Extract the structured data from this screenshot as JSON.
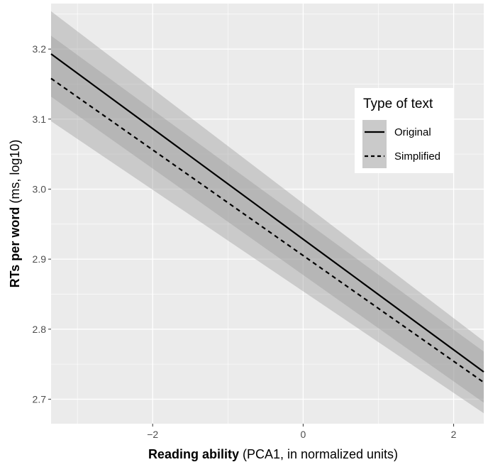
{
  "chart_data": {
    "type": "line",
    "xlabel_bold": "Reading ability",
    "xlabel_rest": " (PCA1, in normalized units)",
    "ylabel_bold": "RTs per word",
    "ylabel_rest": " (ms, log10)",
    "xlim": [
      -3.35,
      2.4
    ],
    "ylim": [
      2.665,
      3.265
    ],
    "x_ticks": [
      -2,
      0,
      2
    ],
    "x_tick_labels": [
      "−2",
      "0",
      "2"
    ],
    "y_ticks": [
      2.7,
      2.8,
      2.9,
      3.0,
      3.1,
      3.2
    ],
    "y_tick_labels": [
      "2.7",
      "2.8",
      "2.9",
      "3.0",
      "3.1",
      "3.2"
    ],
    "grid": true,
    "legend": {
      "title": "Type of text",
      "placement": "right-inside"
    },
    "series": [
      {
        "name": "Original",
        "line_style": "solid",
        "x": [
          -3.35,
          2.4
        ],
        "y": [
          3.193,
          2.739
        ],
        "ci_lower": [
          3.132,
          2.695
        ],
        "ci_upper": [
          3.254,
          2.783
        ]
      },
      {
        "name": "Simplified",
        "line_style": "dashed",
        "x": [
          -3.35,
          2.4
        ],
        "y": [
          3.158,
          2.724
        ],
        "ci_lower": [
          3.097,
          2.68
        ],
        "ci_upper": [
          3.219,
          2.768
        ]
      }
    ],
    "colors": {
      "panel_background": "#ebebeb",
      "grid_major": "#ffffff",
      "ribbon": "#999999",
      "line": "#000000"
    }
  }
}
